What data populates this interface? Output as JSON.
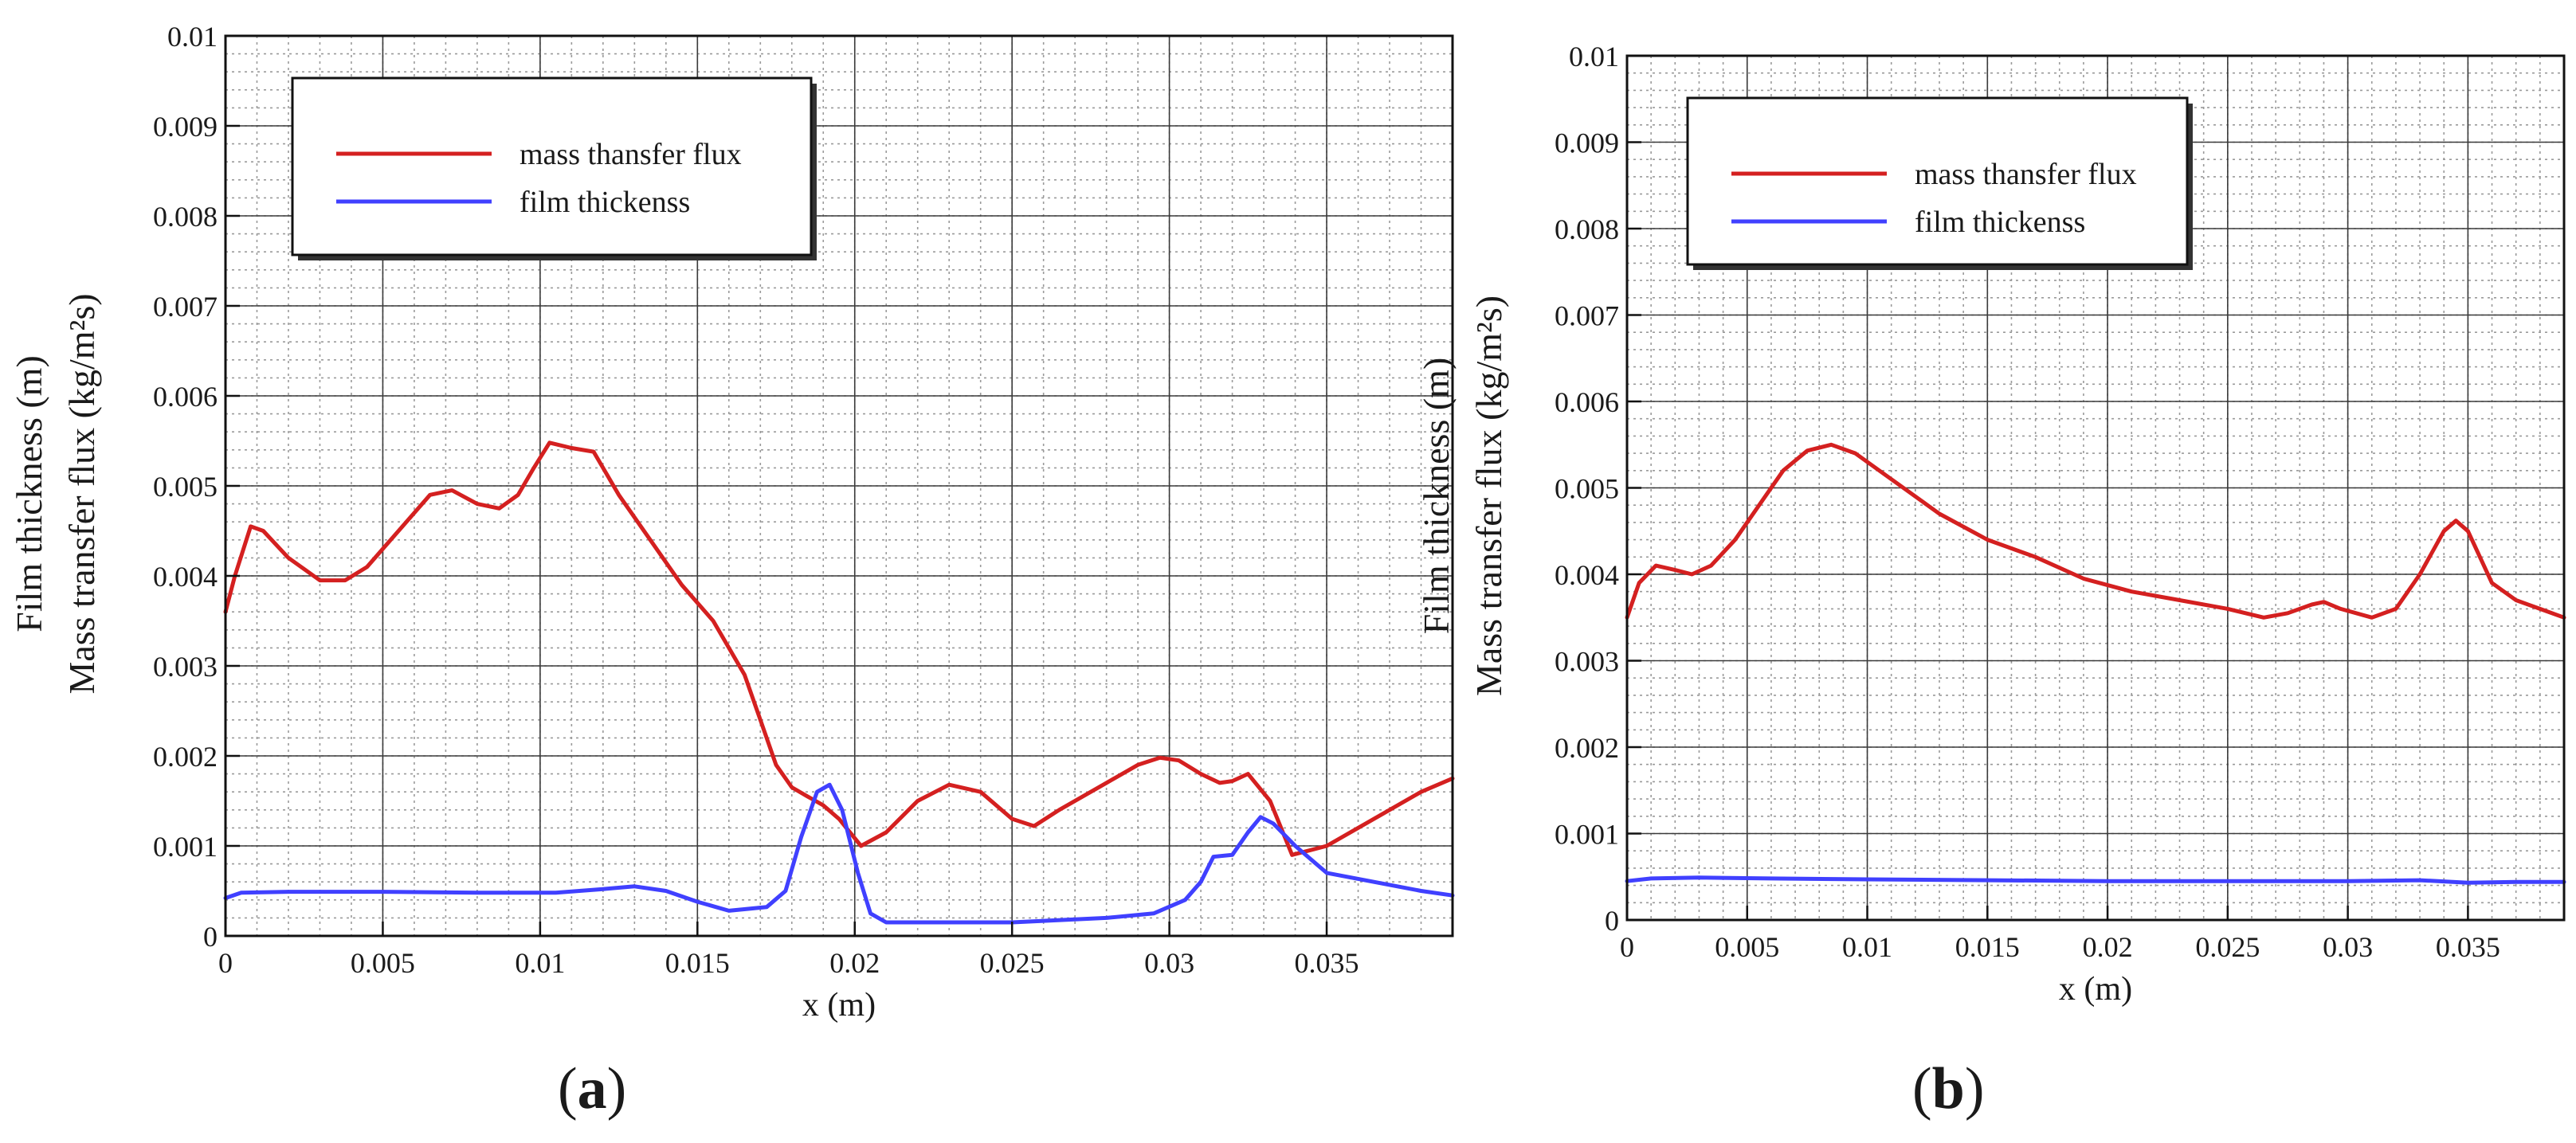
{
  "chart_data": [
    {
      "type": "line",
      "panel_label": "a",
      "title": "",
      "xlabel": "x (m)",
      "ylabel_line1": "Film thickness (m)",
      "ylabel_line2": "Mass transfer flux (kg/m²s)",
      "xlim": [
        0,
        0.039
      ],
      "ylim": [
        0,
        0.01
      ],
      "x_ticks": [
        0,
        0.005,
        0.01,
        0.015,
        0.02,
        0.025,
        0.03,
        0.035
      ],
      "x_tick_labels": [
        "0",
        "0.005",
        "0.01",
        "0.015",
        "0.02",
        "0.025",
        "0.03",
        "0.035"
      ],
      "y_ticks": [
        0,
        0.001,
        0.002,
        0.003,
        0.004,
        0.005,
        0.006,
        0.007,
        0.008,
        0.009,
        0.01
      ],
      "y_tick_labels": [
        "0",
        "0.001",
        "0.002",
        "0.003",
        "0.004",
        "0.005",
        "0.006",
        "0.007",
        "0.008",
        "0.009",
        "0.01"
      ],
      "grid": true,
      "legend_position": "top-left",
      "series": [
        {
          "name": "mass thansfer flux",
          "color": "#d42020",
          "points": [
            [
              0,
              0.0036
            ],
            [
              0.0003,
              0.004
            ],
            [
              0.0008,
              0.00455
            ],
            [
              0.0012,
              0.0045
            ],
            [
              0.002,
              0.0042
            ],
            [
              0.003,
              0.00395
            ],
            [
              0.0038,
              0.00395
            ],
            [
              0.0045,
              0.0041
            ],
            [
              0.0055,
              0.0045
            ],
            [
              0.0065,
              0.0049
            ],
            [
              0.0072,
              0.00495
            ],
            [
              0.008,
              0.0048
            ],
            [
              0.0087,
              0.00475
            ],
            [
              0.0093,
              0.0049
            ],
            [
              0.0098,
              0.0052
            ],
            [
              0.0103,
              0.00548
            ],
            [
              0.011,
              0.00542
            ],
            [
              0.0117,
              0.00538
            ],
            [
              0.0125,
              0.0049
            ],
            [
              0.0135,
              0.0044
            ],
            [
              0.0145,
              0.0039
            ],
            [
              0.0155,
              0.0035
            ],
            [
              0.0165,
              0.0029
            ],
            [
              0.017,
              0.0024
            ],
            [
              0.0175,
              0.0019
            ],
            [
              0.018,
              0.00165
            ],
            [
              0.0185,
              0.00155
            ],
            [
              0.019,
              0.00145
            ],
            [
              0.0195,
              0.0013
            ],
            [
              0.0202,
              0.001
            ],
            [
              0.021,
              0.00115
            ],
            [
              0.022,
              0.0015
            ],
            [
              0.023,
              0.00168
            ],
            [
              0.024,
              0.0016
            ],
            [
              0.025,
              0.0013
            ],
            [
              0.0257,
              0.00122
            ],
            [
              0.0265,
              0.0014
            ],
            [
              0.028,
              0.0017
            ],
            [
              0.029,
              0.0019
            ],
            [
              0.0297,
              0.00198
            ],
            [
              0.0303,
              0.00195
            ],
            [
              0.031,
              0.0018
            ],
            [
              0.0316,
              0.0017
            ],
            [
              0.032,
              0.00172
            ],
            [
              0.0325,
              0.0018
            ],
            [
              0.0332,
              0.0015
            ],
            [
              0.0339,
              0.0009
            ],
            [
              0.035,
              0.001
            ],
            [
              0.036,
              0.0012
            ],
            [
              0.037,
              0.0014
            ],
            [
              0.038,
              0.0016
            ],
            [
              0.039,
              0.00175
            ]
          ]
        },
        {
          "name": "film thickenss",
          "color": "#4040ff",
          "points": [
            [
              0,
              0.00042
            ],
            [
              0.0005,
              0.00048
            ],
            [
              0.002,
              0.00049
            ],
            [
              0.005,
              0.00049
            ],
            [
              0.008,
              0.00048
            ],
            [
              0.0105,
              0.00048
            ],
            [
              0.012,
              0.00052
            ],
            [
              0.013,
              0.00055
            ],
            [
              0.014,
              0.0005
            ],
            [
              0.015,
              0.00038
            ],
            [
              0.016,
              0.00028
            ],
            [
              0.0172,
              0.00032
            ],
            [
              0.0178,
              0.0005
            ],
            [
              0.0183,
              0.0011
            ],
            [
              0.0188,
              0.0016
            ],
            [
              0.0192,
              0.00168
            ],
            [
              0.0196,
              0.0014
            ],
            [
              0.0201,
              0.0007
            ],
            [
              0.0205,
              0.00025
            ],
            [
              0.021,
              0.00015
            ],
            [
              0.022,
              0.00015
            ],
            [
              0.025,
              0.00015
            ],
            [
              0.028,
              0.0002
            ],
            [
              0.0295,
              0.00025
            ],
            [
              0.0305,
              0.0004
            ],
            [
              0.031,
              0.0006
            ],
            [
              0.0314,
              0.00088
            ],
            [
              0.032,
              0.0009
            ],
            [
              0.0325,
              0.00115
            ],
            [
              0.0329,
              0.00132
            ],
            [
              0.0333,
              0.00125
            ],
            [
              0.034,
              0.001
            ],
            [
              0.035,
              0.0007
            ],
            [
              0.0365,
              0.0006
            ],
            [
              0.038,
              0.0005
            ],
            [
              0.039,
              0.00045
            ]
          ]
        }
      ]
    },
    {
      "type": "line",
      "panel_label": "b",
      "title": "",
      "xlabel": "x (m)",
      "ylabel_line1": "Film thickness (m)",
      "ylabel_line2": "Mass transfer flux (kg/m²s)",
      "xlim": [
        0,
        0.039
      ],
      "ylim": [
        0,
        0.01
      ],
      "x_ticks": [
        0,
        0.005,
        0.01,
        0.015,
        0.02,
        0.025,
        0.03,
        0.035
      ],
      "x_tick_labels": [
        "0",
        "0.005",
        "0.01",
        "0.015",
        "0.02",
        "0.025",
        "0.03",
        "0.035"
      ],
      "y_ticks": [
        0,
        0.001,
        0.002,
        0.003,
        0.004,
        0.005,
        0.006,
        0.007,
        0.008,
        0.009,
        0.01
      ],
      "y_tick_labels": [
        "0",
        "0.001",
        "0.002",
        "0.003",
        "0.004",
        "0.005",
        "0.006",
        "0.007",
        "0.008",
        "0.009",
        "0.01"
      ],
      "grid": true,
      "legend_position": "top-left",
      "series": [
        {
          "name": "mass thansfer flux",
          "color": "#d42020",
          "points": [
            [
              0,
              0.0035
            ],
            [
              0.0005,
              0.0039
            ],
            [
              0.0012,
              0.0041
            ],
            [
              0.002,
              0.00405
            ],
            [
              0.0027,
              0.004
            ],
            [
              0.0035,
              0.0041
            ],
            [
              0.0045,
              0.0044
            ],
            [
              0.0055,
              0.0048
            ],
            [
              0.0065,
              0.0052
            ],
            [
              0.0075,
              0.00543
            ],
            [
              0.0085,
              0.0055
            ],
            [
              0.0095,
              0.0054
            ],
            [
              0.011,
              0.0051
            ],
            [
              0.013,
              0.0047
            ],
            [
              0.015,
              0.0044
            ],
            [
              0.017,
              0.0042
            ],
            [
              0.019,
              0.00395
            ],
            [
              0.021,
              0.0038
            ],
            [
              0.023,
              0.0037
            ],
            [
              0.025,
              0.0036
            ],
            [
              0.0265,
              0.0035
            ],
            [
              0.0275,
              0.00355
            ],
            [
              0.0285,
              0.00365
            ],
            [
              0.029,
              0.00368
            ],
            [
              0.0297,
              0.0036
            ],
            [
              0.031,
              0.0035
            ],
            [
              0.032,
              0.0036
            ],
            [
              0.033,
              0.004
            ],
            [
              0.034,
              0.0045
            ],
            [
              0.0345,
              0.00462
            ],
            [
              0.035,
              0.0045
            ],
            [
              0.036,
              0.0039
            ],
            [
              0.037,
              0.0037
            ],
            [
              0.038,
              0.0036
            ],
            [
              0.039,
              0.0035
            ]
          ]
        },
        {
          "name": "film thickenss",
          "color": "#4040ff",
          "points": [
            [
              0,
              0.00045
            ],
            [
              0.001,
              0.00048
            ],
            [
              0.003,
              0.00049
            ],
            [
              0.006,
              0.00048
            ],
            [
              0.01,
              0.00047
            ],
            [
              0.015,
              0.00046
            ],
            [
              0.02,
              0.00045
            ],
            [
              0.025,
              0.00045
            ],
            [
              0.03,
              0.00045
            ],
            [
              0.033,
              0.00046
            ],
            [
              0.035,
              0.00043
            ],
            [
              0.037,
              0.00044
            ],
            [
              0.039,
              0.00044
            ]
          ]
        }
      ]
    }
  ]
}
